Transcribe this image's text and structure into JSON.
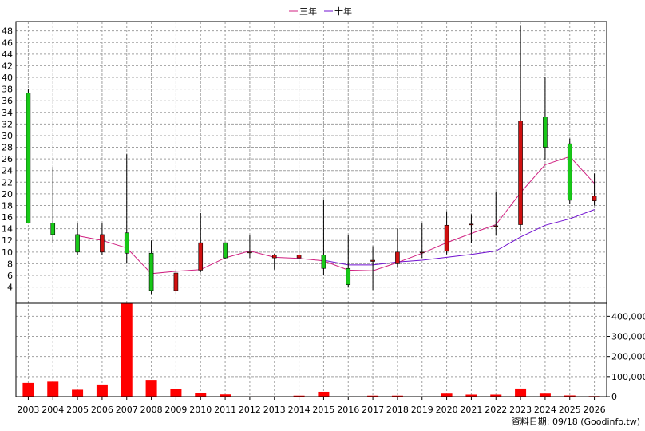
{
  "legend": {
    "ma3": "三年",
    "ma10": "十年"
  },
  "footer": {
    "date": "資料日期: 09/18  (Goodinfo.tw)"
  },
  "colors": {
    "up": "#d01010",
    "down": "#18c818",
    "ma3": "#d02080",
    "ma10": "#7010d0",
    "volume": "#ff0000",
    "grid": "#a0a0a0"
  },
  "chart_data": {
    "type": "candlestick",
    "categories": [
      "2003",
      "2004",
      "2005",
      "2006",
      "2007",
      "2008",
      "2009",
      "2010",
      "2011",
      "2012",
      "2013",
      "2014",
      "2015",
      "2016",
      "2017",
      "2018",
      "2019",
      "2020",
      "2021",
      "2022",
      "2023",
      "2024",
      "2025",
      "2026"
    ],
    "price_axis": {
      "ticks": [
        4,
        6,
        8,
        10,
        12,
        14,
        16,
        18,
        20,
        22,
        24,
        26,
        28,
        30,
        32,
        34,
        36,
        38,
        40,
        42,
        44,
        46,
        48
      ],
      "range": [
        1.2,
        49.6
      ]
    },
    "volume_axis": {
      "ticks": [
        0,
        100000,
        200000,
        300000,
        400000
      ],
      "tick_labels": [
        "0",
        "100,000",
        "200,000",
        "300,000",
        "400,000"
      ],
      "range": [
        0,
        465000
      ]
    },
    "ohlc": [
      {
        "open": 37.3,
        "high": 38.0,
        "low": 14.9,
        "close": 15.0
      },
      {
        "open": 15.0,
        "high": 24.6,
        "low": 11.5,
        "close": 13.0
      },
      {
        "open": 13.0,
        "high": 15.0,
        "low": 9.5,
        "close": 10.0
      },
      {
        "open": 10.0,
        "high": 15.0,
        "low": 9.5,
        "close": 13.0
      },
      {
        "open": 13.3,
        "high": 26.8,
        "low": 8.0,
        "close": 9.8
      },
      {
        "open": 9.8,
        "high": 12.0,
        "low": 2.8,
        "close": 3.4
      },
      {
        "open": 3.4,
        "high": 7.0,
        "low": 2.9,
        "close": 6.4
      },
      {
        "open": 6.9,
        "high": 16.7,
        "low": 6.5,
        "close": 11.6
      },
      {
        "open": 11.6,
        "high": 11.6,
        "low": 8.8,
        "close": 9.0
      },
      {
        "open": 10.0,
        "high": 13.0,
        "low": 9.0,
        "close": 10.0
      },
      {
        "open": 9.0,
        "high": 9.7,
        "low": 7.0,
        "close": 9.5
      },
      {
        "open": 9.0,
        "high": 12.0,
        "low": 8.0,
        "close": 9.5
      },
      {
        "open": 9.5,
        "high": 19.0,
        "low": 6.0,
        "close": 7.2
      },
      {
        "open": 7.2,
        "high": 13.0,
        "low": 3.9,
        "close": 4.4
      },
      {
        "open": 8.4,
        "high": 11.0,
        "low": 3.5,
        "close": 8.6
      },
      {
        "open": 8.0,
        "high": 14.0,
        "low": 7.3,
        "close": 10.0
      },
      {
        "open": 10.0,
        "high": 15.0,
        "low": 9.0,
        "close": 10.0
      },
      {
        "open": 10.2,
        "high": 17.0,
        "low": 9.6,
        "close": 14.6
      },
      {
        "open": 14.8,
        "high": 16.5,
        "low": 11.6,
        "close": 14.8
      },
      {
        "open": 14.5,
        "high": 20.4,
        "low": 12.8,
        "close": 14.5
      },
      {
        "open": 14.7,
        "high": 49.0,
        "low": 13.5,
        "close": 32.5
      },
      {
        "open": 33.2,
        "high": 40.0,
        "low": 25.8,
        "close": 28.0
      },
      {
        "open": 28.6,
        "high": 29.5,
        "low": 18.3,
        "close": 18.9
      },
      {
        "open": 18.8,
        "high": 23.5,
        "low": 18.0,
        "close": 19.6
      }
    ],
    "series": [
      {
        "name": "三年",
        "values": [
          null,
          null,
          12.8,
          12.0,
          10.7,
          6.3,
          6.7,
          7.0,
          9.0,
          10.2,
          9.1,
          8.9,
          8.5,
          6.9,
          6.8,
          8.2,
          9.8,
          11.6,
          13.2,
          14.7,
          20.2,
          25.0,
          26.4,
          21.8
        ]
      },
      {
        "name": "十年",
        "values": [
          null,
          null,
          null,
          null,
          null,
          null,
          null,
          null,
          null,
          null,
          null,
          null,
          8.6,
          7.8,
          7.8,
          8.3,
          8.6,
          9.1,
          9.6,
          10.2,
          12.6,
          14.6,
          15.7,
          17.3
        ]
      }
    ],
    "volume": [
      68000,
      78000,
      34000,
      60000,
      465000,
      83000,
      37000,
      18000,
      11000,
      2000,
      2000,
      5000,
      24000,
      2000,
      5000,
      5000,
      2000,
      15000,
      10000,
      10000,
      40000,
      15000,
      6000,
      3000
    ]
  }
}
